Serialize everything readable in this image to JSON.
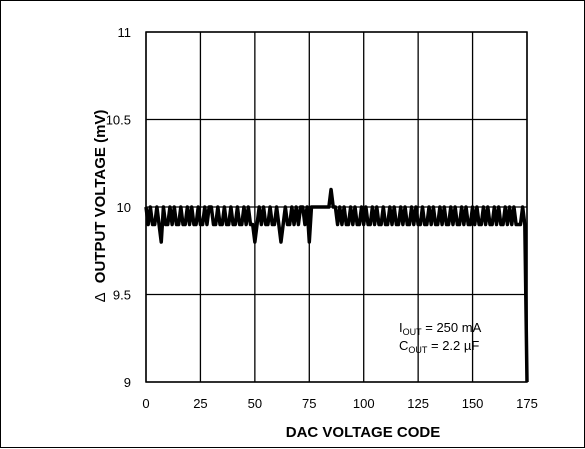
{
  "chart_data": {
    "type": "line",
    "title": "",
    "xlabel": "DAC VOLTAGE CODE",
    "ylabel_symbol": "Δ",
    "ylabel": "OUTPUT VOLTAGE (mV)",
    "xlim": [
      0,
      175
    ],
    "ylim": [
      9,
      11
    ],
    "xticks": [
      "0",
      "25",
      "50",
      "75",
      "100",
      "125",
      "150",
      "175"
    ],
    "yticks": [
      "9",
      "9.5",
      "10",
      "10.5",
      "11"
    ],
    "grid": true,
    "annotation": {
      "line1": {
        "base": "I",
        "sub": "OUT",
        "rest": " = 250 mA"
      },
      "line2": {
        "base": "C",
        "sub": "OUT",
        "rest": " = 2.2 µF"
      }
    },
    "series": [
      {
        "color": "#000000",
        "x": [
          0,
          1,
          2,
          3,
          4,
          5,
          6,
          7,
          8,
          9,
          10,
          11,
          12,
          13,
          14,
          15,
          16,
          17,
          18,
          19,
          20,
          21,
          22,
          23,
          24,
          25,
          26,
          27,
          28,
          29,
          30,
          31,
          32,
          33,
          34,
          35,
          36,
          37,
          38,
          39,
          40,
          41,
          42,
          43,
          44,
          45,
          46,
          47,
          48,
          49,
          50,
          51,
          52,
          53,
          54,
          55,
          56,
          57,
          58,
          59,
          60,
          61,
          62,
          63,
          64,
          65,
          66,
          67,
          68,
          69,
          70,
          71,
          72,
          73,
          74,
          75,
          76,
          77,
          78,
          79,
          80,
          81,
          82,
          83,
          84,
          85,
          86,
          87,
          88,
          89,
          90,
          91,
          92,
          93,
          94,
          95,
          96,
          97,
          98,
          99,
          100,
          101,
          102,
          103,
          104,
          105,
          106,
          107,
          108,
          109,
          110,
          111,
          112,
          113,
          114,
          115,
          116,
          117,
          118,
          119,
          120,
          121,
          122,
          123,
          124,
          125,
          126,
          127,
          128,
          129,
          130,
          131,
          132,
          133,
          134,
          135,
          136,
          137,
          138,
          139,
          140,
          141,
          142,
          143,
          144,
          145,
          146,
          147,
          148,
          149,
          150,
          151,
          152,
          153,
          154,
          155,
          156,
          157,
          158,
          159,
          160,
          161,
          162,
          163,
          164,
          165,
          166,
          167,
          168,
          169,
          170,
          171,
          172,
          173,
          174,
          175
        ],
        "values": [
          10,
          9.9,
          10,
          9.9,
          9.9,
          10,
          9.9,
          9.8,
          10,
          9.9,
          9.9,
          10,
          9.9,
          10,
          9.9,
          9.9,
          10,
          9.9,
          9.9,
          10,
          9.9,
          10,
          9.9,
          9.9,
          10,
          9.9,
          9.9,
          10,
          9.9,
          10,
          10,
          9.9,
          9.9,
          10,
          9.9,
          9.9,
          10,
          9.9,
          9.9,
          10,
          9.9,
          9.9,
          10,
          9.9,
          9.9,
          10,
          9.9,
          10,
          9.9,
          9.9,
          9.8,
          9.9,
          10,
          9.9,
          10,
          9.9,
          9.9,
          10,
          9.9,
          9.9,
          10,
          9.9,
          9.8,
          9.9,
          10,
          9.9,
          9.9,
          10,
          9.9,
          10,
          9.9,
          10,
          10,
          9.9,
          10,
          9.8,
          10,
          10,
          10,
          10,
          10,
          10,
          10,
          10,
          10,
          10.1,
          10,
          10,
          9.9,
          10,
          9.9,
          10,
          9.9,
          9.9,
          10,
          9.9,
          10,
          9.9,
          9.9,
          10,
          9.9,
          10,
          9.9,
          9.9,
          10,
          9.9,
          10,
          9.9,
          9.9,
          10,
          9.9,
          9.9,
          10,
          9.9,
          10,
          9.9,
          9.9,
          10,
          9.9,
          10,
          9.9,
          9.9,
          10,
          9.9,
          10,
          9.9,
          9.9,
          10,
          9.9,
          9.9,
          10,
          9.9,
          10,
          9.9,
          9.9,
          10,
          9.9,
          10,
          9.9,
          9.9,
          10,
          9.9,
          10,
          9.9,
          9.9,
          10,
          9.9,
          10,
          9.9,
          9.9,
          10,
          9.9,
          10,
          9.9,
          9.9,
          10,
          9.9,
          10,
          9.9,
          9.9,
          10,
          9.9,
          10,
          9.9,
          9.9,
          10,
          9.9,
          10,
          9.9,
          10,
          9.9,
          9.9,
          9.9,
          10,
          9.9,
          9
        ]
      }
    ]
  }
}
